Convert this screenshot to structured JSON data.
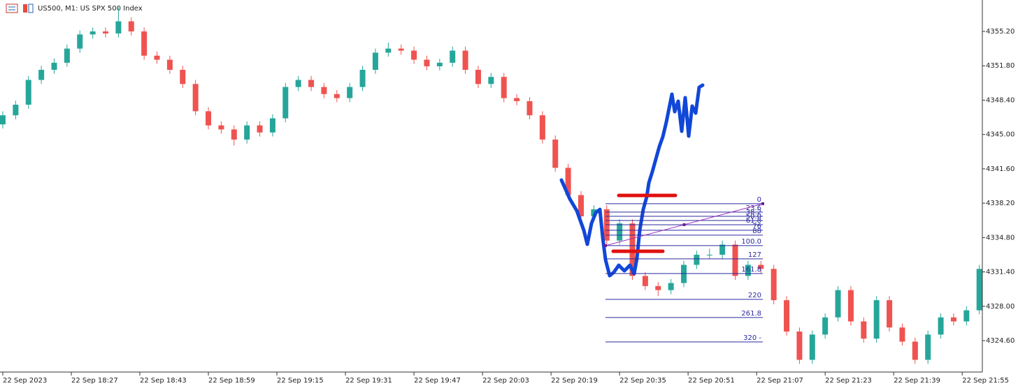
{
  "chart_data": {
    "type": "candlestick",
    "title": "US500, M1: US SPX 500 Index",
    "up_color": "#26a69a",
    "down_color": "#ef5350",
    "fib_color": "#2a2aa0",
    "x": [
      0,
      3,
      6,
      9,
      12,
      15,
      18,
      21,
      24,
      27,
      30,
      33,
      36,
      39,
      42,
      45,
      48,
      51,
      54,
      57,
      60,
      63,
      66,
      69,
      72,
      75,
      78,
      81,
      84,
      87,
      90,
      93,
      96,
      99,
      102,
      105,
      108,
      111,
      114,
      117,
      120,
      123,
      126,
      129,
      132,
      135,
      138,
      141,
      144,
      147,
      150,
      153,
      156,
      159,
      162,
      165,
      168,
      171,
      174,
      177,
      180,
      183,
      186,
      189,
      192,
      195,
      198,
      201,
      204,
      207,
      210,
      213,
      216,
      219,
      222,
      225,
      228
    ],
    "open": [
      4346.0,
      4346.9,
      4347.95,
      4350.4,
      4351.4,
      4352.1,
      4353.5,
      4354.9,
      4355.2,
      4355.0,
      4356.2,
      4355.2,
      4352.8,
      4352.4,
      4351.4,
      4350.0,
      4347.3,
      4345.9,
      4345.5,
      4344.5,
      4345.9,
      4345.2,
      4346.6,
      4349.7,
      4350.4,
      4349.7,
      4349.0,
      4348.6,
      4349.7,
      4351.4,
      4353.1,
      4353.5,
      4353.3,
      4352.4,
      4351.75,
      4352.1,
      4353.3,
      4351.4,
      4350.0,
      4350.7,
      4348.6,
      4348.3,
      4346.9,
      4344.5,
      4341.7,
      4339.0,
      4336.9,
      4337.6,
      4334.5,
      4336.2,
      4331.0,
      4330.0,
      4329.6,
      4330.3,
      4332.1,
      4333.1,
      4333.1,
      4334.1,
      4331.0,
      4332.1,
      4331.7,
      4328.6,
      4325.5,
      4322.7,
      4325.2,
      4326.9,
      4329.6,
      4326.5,
      4324.8,
      4328.6,
      4325.9,
      4324.5,
      4322.7,
      4325.2,
      4326.9,
      4326.5,
      4327.6
    ],
    "high": [
      4347.3,
      4348.35,
      4350.8,
      4351.8,
      4352.5,
      4353.9,
      4355.3,
      4355.6,
      4355.6,
      4357.6,
      4356.6,
      4355.6,
      4353.2,
      4352.8,
      4351.8,
      4350.4,
      4347.7,
      4346.3,
      4345.9,
      4346.3,
      4346.3,
      4347.0,
      4350.1,
      4350.8,
      4350.8,
      4350.1,
      4349.4,
      4350.1,
      4351.8,
      4353.5,
      4354.1,
      4353.9,
      4353.7,
      4352.8,
      4352.5,
      4353.7,
      4353.7,
      4351.8,
      4351.1,
      4351.1,
      4349.0,
      4348.7,
      4347.3,
      4344.9,
      4342.1,
      4339.4,
      4338.0,
      4338.0,
      4336.6,
      4336.6,
      4331.4,
      4330.4,
      4330.7,
      4332.5,
      4333.5,
      4333.7,
      4334.5,
      4334.5,
      4332.5,
      4332.5,
      4332.1,
      4329.0,
      4325.9,
      4325.6,
      4327.3,
      4330.0,
      4330.0,
      4326.9,
      4329.0,
      4329.0,
      4326.3,
      4324.9,
      4325.6,
      4327.3,
      4327.3,
      4328.0,
      4332.1
    ],
    "low": [
      4345.6,
      4346.5,
      4347.55,
      4350.0,
      4351.0,
      4351.7,
      4353.1,
      4354.5,
      4354.6,
      4354.6,
      4354.8,
      4352.4,
      4352.0,
      4351.0,
      4349.6,
      4346.9,
      4345.5,
      4345.1,
      4343.9,
      4344.1,
      4344.8,
      4344.8,
      4346.2,
      4349.3,
      4349.3,
      4348.6,
      4348.2,
      4348.2,
      4349.3,
      4351.0,
      4352.7,
      4352.9,
      4352.0,
      4351.35,
      4351.35,
      4351.7,
      4351.0,
      4349.6,
      4349.6,
      4348.2,
      4347.9,
      4346.5,
      4344.1,
      4341.3,
      4338.6,
      4336.5,
      4336.5,
      4334.1,
      4334.1,
      4330.6,
      4329.6,
      4329.0,
      4329.2,
      4329.9,
      4331.7,
      4332.7,
      4332.7,
      4330.6,
      4330.6,
      4331.3,
      4328.2,
      4325.1,
      4322.3,
      4322.3,
      4324.8,
      4326.5,
      4326.1,
      4324.4,
      4324.4,
      4325.5,
      4324.1,
      4322.3,
      4322.3,
      4324.8,
      4326.1,
      4326.1,
      4327.2
    ],
    "close": [
      4346.9,
      4347.95,
      4350.4,
      4351.4,
      4352.1,
      4353.5,
      4354.9,
      4355.2,
      4355.0,
      4356.2,
      4355.2,
      4352.8,
      4352.4,
      4351.4,
      4350.0,
      4347.3,
      4345.9,
      4345.5,
      4344.5,
      4345.9,
      4345.2,
      4346.6,
      4349.7,
      4350.4,
      4349.7,
      4349.0,
      4348.6,
      4349.7,
      4351.4,
      4353.1,
      4353.5,
      4353.3,
      4352.4,
      4351.75,
      4352.1,
      4353.3,
      4351.4,
      4350.0,
      4350.7,
      4348.6,
      4348.3,
      4346.9,
      4344.5,
      4341.7,
      4339.0,
      4336.9,
      4337.6,
      4334.5,
      4336.2,
      4331.0,
      4330.0,
      4329.6,
      4330.3,
      4332.1,
      4333.1,
      4333.1,
      4334.1,
      4331.0,
      4332.1,
      4331.7,
      4328.6,
      4325.5,
      4322.7,
      4325.2,
      4326.9,
      4329.6,
      4326.5,
      4324.8,
      4328.6,
      4325.9,
      4324.5,
      4322.7,
      4325.2,
      4326.9,
      4326.5,
      4327.6,
      4331.7
    ],
    "ylim": [
      4321.56,
      4358.31
    ],
    "yticks": [
      {
        "value": 4355.2,
        "label": "4355.20"
      },
      {
        "value": 4351.8,
        "label": "4351.80"
      },
      {
        "value": 4348.4,
        "label": "4348.40"
      },
      {
        "value": 4345.0,
        "label": "4345.00"
      },
      {
        "value": 4341.6,
        "label": "4341.60"
      },
      {
        "value": 4338.2,
        "label": "4338.20"
      },
      {
        "value": 4334.8,
        "label": "4334.80"
      },
      {
        "value": 4331.4,
        "label": "4331.40"
      },
      {
        "value": 4328.0,
        "label": "4328.00"
      },
      {
        "value": 4324.6,
        "label": "4324.60"
      }
    ],
    "xlim": [
      -0.65,
      228.7
    ],
    "xticks": [
      {
        "value": 0,
        "label": "22 Sep 2023"
      },
      {
        "value": 16,
        "label": "22 Sep 18:27"
      },
      {
        "value": 32,
        "label": "22 Sep 18:43"
      },
      {
        "value": 48,
        "label": "22 Sep 18:59"
      },
      {
        "value": 64,
        "label": "22 Sep 19:15"
      },
      {
        "value": 80,
        "label": "22 Sep 19:31"
      },
      {
        "value": 96,
        "label": "22 Sep 19:47"
      },
      {
        "value": 112,
        "label": "22 Sep 20:03"
      },
      {
        "value": 128,
        "label": "22 Sep 20:19"
      },
      {
        "value": 144,
        "label": "22 Sep 20:35"
      },
      {
        "value": 160,
        "label": "22 Sep 20:51"
      },
      {
        "value": 176,
        "label": "22 Sep 21:07"
      },
      {
        "value": 192,
        "label": "22 Sep 21:23"
      },
      {
        "value": 208,
        "label": "22 Sep 21:39"
      },
      {
        "value": 224,
        "label": "22 Sep 21:55"
      }
    ],
    "fib_levels": [
      {
        "value": 4338.15,
        "label": "0"
      },
      {
        "value": 4337.32,
        "label": "23.6"
      },
      {
        "value": 4336.9,
        "label": "38.2"
      },
      {
        "value": 4336.49,
        "label": "50.0"
      },
      {
        "value": 4336.07,
        "label": "61.8"
      },
      {
        "value": 4335.52,
        "label": "76"
      },
      {
        "value": 4335.04,
        "label": "88"
      },
      {
        "value": 4334.0,
        "label": "100.0"
      },
      {
        "value": 4332.69,
        "label": "127"
      },
      {
        "value": 4331.24,
        "label": "161.8"
      },
      {
        "value": 4328.68,
        "label": "220"
      },
      {
        "value": 4326.89,
        "label": "261.8"
      },
      {
        "value": 4324.47,
        "label": "320 -"
      }
    ]
  }
}
